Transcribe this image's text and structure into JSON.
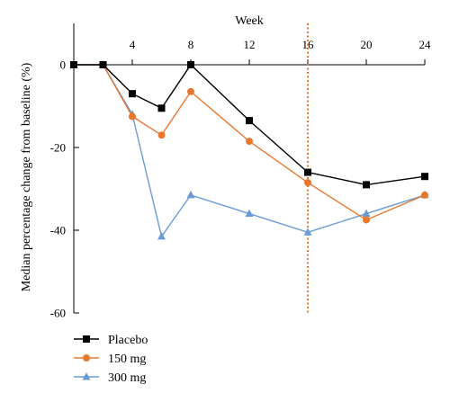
{
  "chart_data": {
    "type": "line",
    "xlabel": "Week",
    "ylabel": "Median percentage change from baseline (%)",
    "xlim": [
      0,
      24
    ],
    "ylim": [
      -60,
      10
    ],
    "x_ticks": [
      4,
      8,
      12,
      16,
      20,
      24
    ],
    "y_ticks": [
      0,
      -20,
      -40,
      -60
    ],
    "x_tick_labels": [
      "4",
      "8",
      "12",
      "16",
      "20",
      "24"
    ],
    "y_tick_labels": [
      "0",
      "-20",
      "-40",
      "-60"
    ],
    "x_axis_position": "top",
    "grid": false,
    "legend_position": "bottom-left",
    "reference_line": {
      "x": 16,
      "style": "dotted",
      "color": "#E8772E"
    },
    "series": [
      {
        "name": "Placebo",
        "color": "#000000",
        "marker": "square",
        "x": [
          0,
          2,
          4,
          6,
          8,
          12,
          16,
          20,
          24
        ],
        "y": [
          0,
          0,
          -7,
          -10.5,
          0,
          -13.5,
          -26,
          -29,
          -27
        ]
      },
      {
        "name": "150 mg",
        "color": "#E8772E",
        "marker": "circle",
        "x": [
          0,
          2,
          4,
          6,
          8,
          12,
          16,
          20,
          24
        ],
        "y": [
          0,
          0,
          -12.5,
          -17,
          -6.5,
          -18.5,
          -28.5,
          -37.5,
          -31.5
        ]
      },
      {
        "name": "300 mg",
        "color": "#6A9BD6",
        "marker": "triangle",
        "x": [
          0,
          2,
          4,
          6,
          8,
          12,
          16,
          20,
          24
        ],
        "y": [
          0,
          0,
          -12,
          -41.5,
          -31.5,
          -36,
          -40.5,
          -36,
          -31.5
        ]
      }
    ]
  }
}
